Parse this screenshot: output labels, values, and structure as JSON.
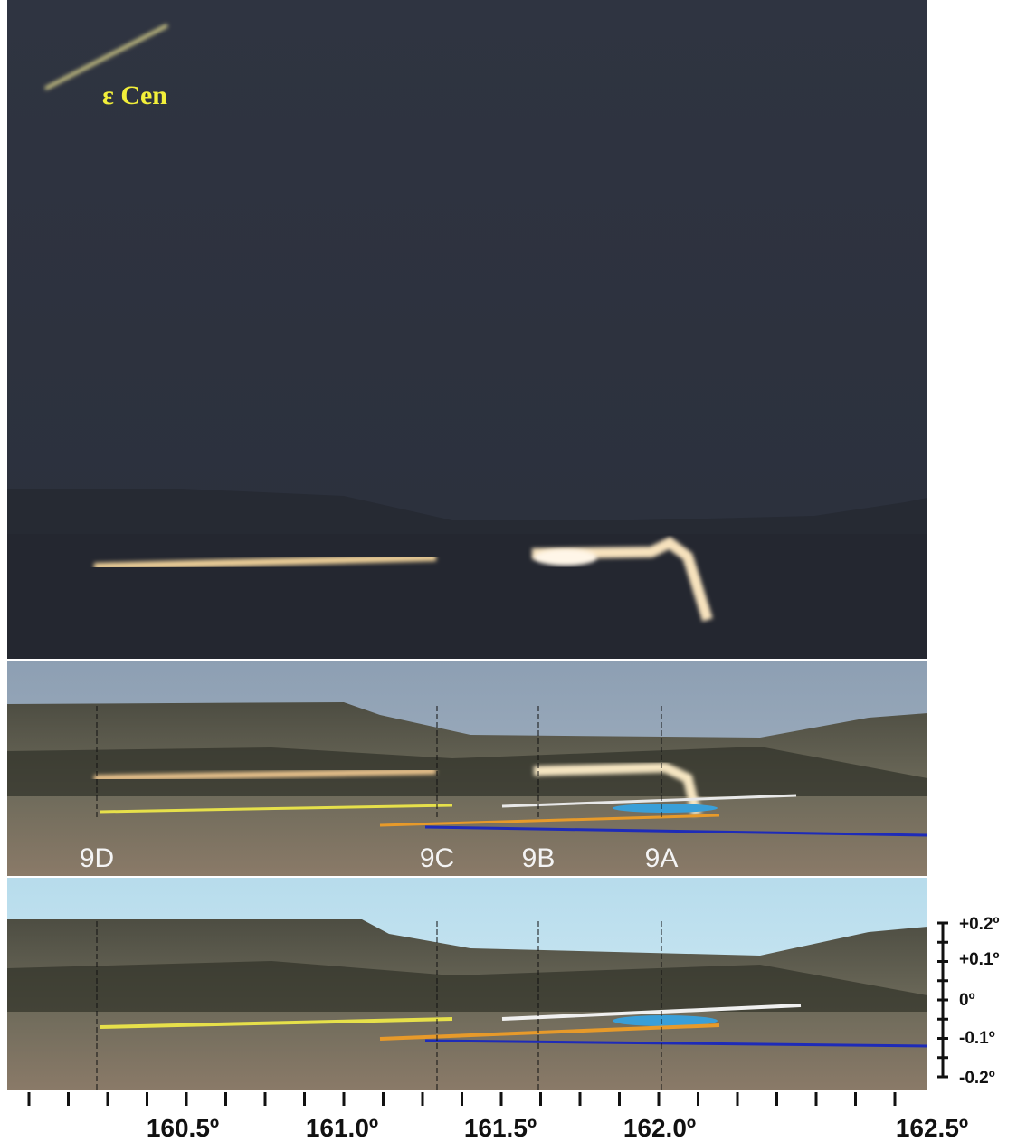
{
  "photo": {
    "star_label": "ε Cen"
  },
  "markers": [
    "9D",
    "9C",
    "9B",
    "9A"
  ],
  "x_axis": {
    "labels": [
      "160.5º",
      "161.0º",
      "161.5º",
      "162.0º",
      "162.5º"
    ]
  },
  "y_axis": {
    "labels": [
      "+0.2º",
      "+0.1º",
      "0º",
      "-0.1º",
      "-0.2º"
    ]
  }
}
